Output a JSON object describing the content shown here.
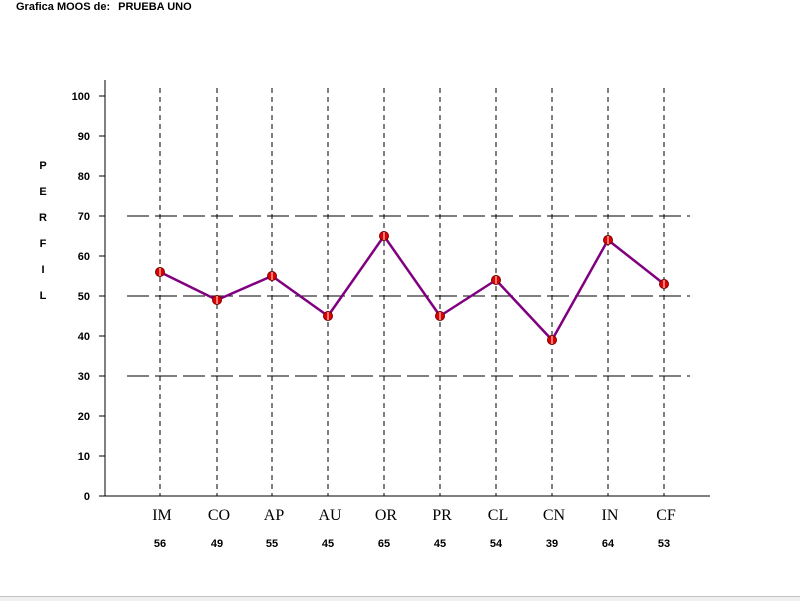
{
  "window": {
    "title_prefix": "Grafica MOOS de:",
    "subject": "PRUEBA UNO"
  },
  "chart_data": {
    "type": "line",
    "ylabel": "PERFIL",
    "ylim": [
      0,
      100
    ],
    "yticks": [
      0,
      10,
      20,
      30,
      40,
      50,
      60,
      70,
      80,
      90,
      100
    ],
    "reference_lines": [
      30,
      50,
      70
    ],
    "categories": [
      "IM",
      "CO",
      "AP",
      "AU",
      "OR",
      "PR",
      "CL",
      "CN",
      "IN",
      "CF"
    ],
    "values": [
      56,
      49,
      55,
      45,
      65,
      45,
      54,
      39,
      64,
      53
    ],
    "value_labels": [
      "56",
      "49",
      "55",
      "45",
      "65",
      "45",
      "54",
      "39",
      "64",
      "53"
    ],
    "grid": true,
    "colors": {
      "line": "#800080",
      "marker": "#e00000",
      "axis": "#000000"
    }
  }
}
